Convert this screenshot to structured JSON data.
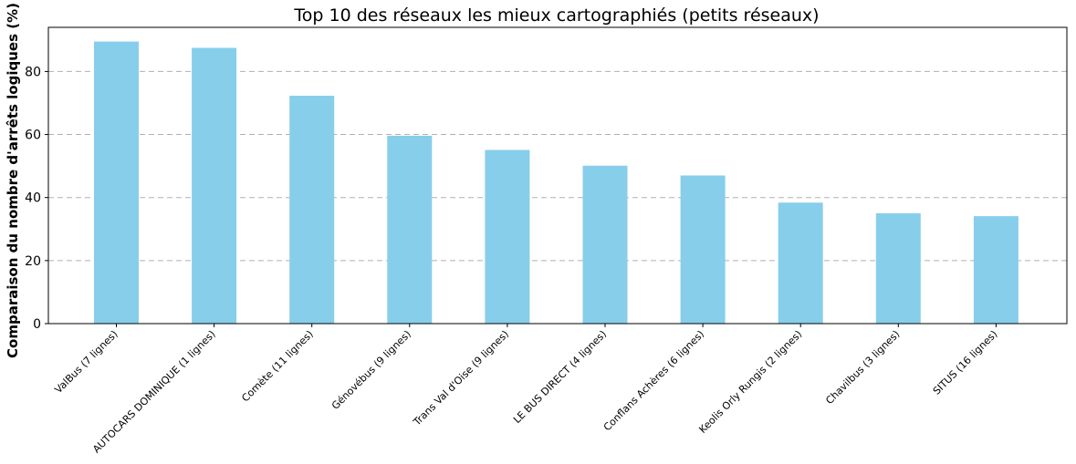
{
  "chart_data": {
    "type": "bar",
    "title": "Top 10 des réseaux les mieux cartographiés (petits réseaux)",
    "xlabel": "",
    "ylabel": "Comparaison du nombre d'arrêts logiques (%)",
    "categories": [
      "ValBus (7 lignes)",
      "AUTOCARS DOMINIQUE (1 lignes)",
      "Comète (11 lignes)",
      "Génovébus (9 lignes)",
      "Trans Val d'Oise (9 lignes)",
      "LE BUS DIRECT (4 lignes)",
      "Conflans Achères (6 lignes)",
      "Keolis Orly Rungis (2 lignes)",
      "Chavilbus (3 lignes)",
      "SITUS (16 lignes)"
    ],
    "values": [
      89.5,
      87.5,
      72.3,
      59.6,
      55.1,
      50.1,
      47.0,
      38.4,
      35.0,
      34.1
    ],
    "ylim": [
      0,
      94
    ],
    "yticks": [
      0,
      20,
      40,
      60,
      80
    ],
    "grid": "y-dashed",
    "legend": "none",
    "bar_color": "#87CEEB"
  }
}
